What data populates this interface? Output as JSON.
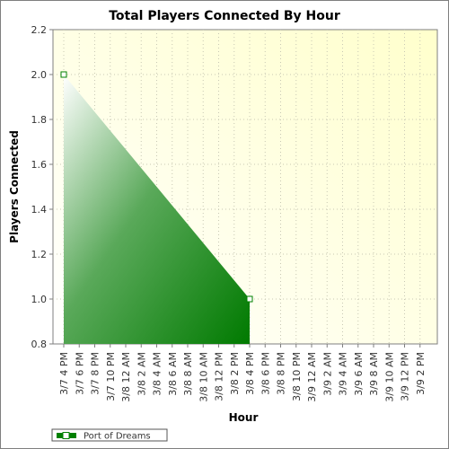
{
  "chart_data": {
    "type": "area",
    "title": "Total Players Connected By Hour",
    "xlabel": "Hour",
    "ylabel": "Players Connected",
    "ylim": [
      0.8,
      2.2
    ],
    "yticks": [
      "0.8",
      "1.0",
      "1.2",
      "1.4",
      "1.6",
      "1.8",
      "2.0",
      "2.2"
    ],
    "categories": [
      "3/7 4 PM",
      "3/7 6 PM",
      "3/7 8 PM",
      "3/7 10 PM",
      "3/8 12 AM",
      "3/8 2 AM",
      "3/8 4 AM",
      "3/8 6 AM",
      "3/8 8 AM",
      "3/8 10 AM",
      "3/8 12 PM",
      "3/8 2 PM",
      "3/8 4 PM",
      "3/8 6 PM",
      "3/8 8 PM",
      "3/8 10 PM",
      "3/9 12 AM",
      "3/9 2 AM",
      "3/9 4 AM",
      "3/9 6 AM",
      "3/9 8 AM",
      "3/9 10 AM",
      "3/9 12 PM",
      "3/9 2 PM"
    ],
    "series": [
      {
        "name": "Port of Dreams",
        "color": "#008000",
        "x": [
          0,
          12
        ],
        "values": [
          2.0,
          1.0
        ]
      }
    ],
    "grid": true,
    "legend": "bottom-left"
  }
}
